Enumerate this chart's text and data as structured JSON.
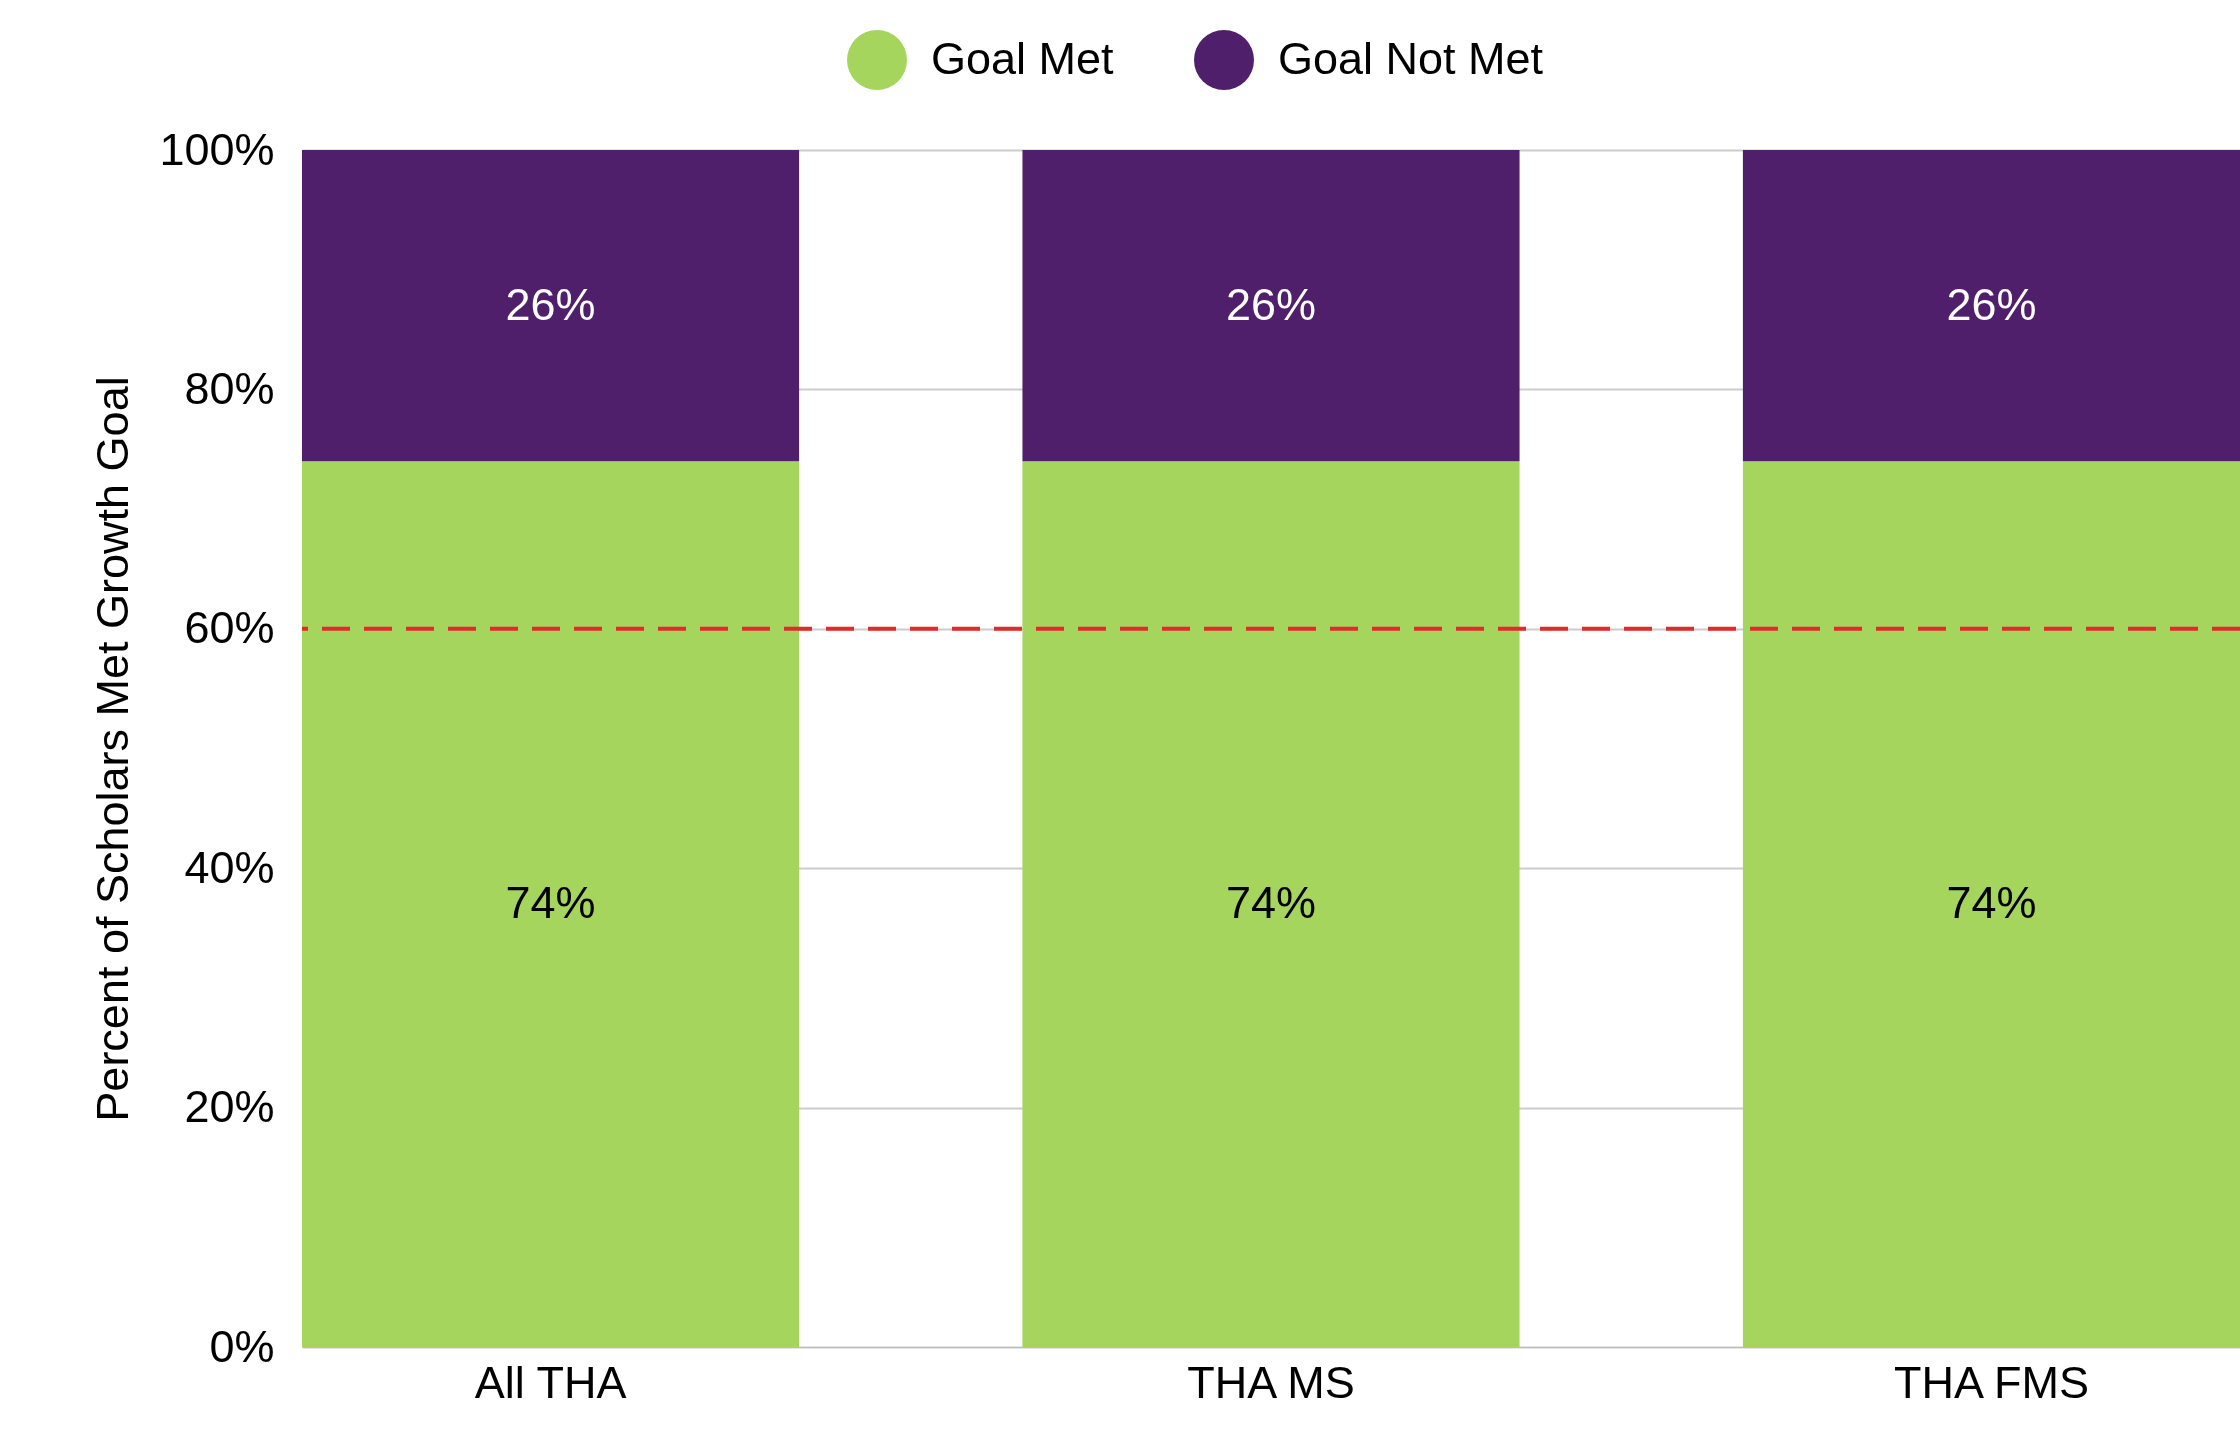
{
  "chart_data": {
    "type": "bar",
    "stacked": true,
    "ylabel": "Percent of Scholars Met Growth Goal",
    "categories": [
      "All THA",
      "THA MS",
      "THA FMS"
    ],
    "series": [
      {
        "name": "Goal Met",
        "color": "#a5d55c",
        "values": [
          74,
          74,
          74
        ],
        "value_labels": [
          "74%",
          "74%",
          "74%"
        ]
      },
      {
        "name": "Goal Not Met",
        "color": "#4f1f6b",
        "values": [
          26,
          26,
          26
        ],
        "value_labels": [
          "26%",
          "26%",
          "26%"
        ]
      }
    ],
    "ylim": [
      0,
      100
    ],
    "yticks": [
      {
        "value": 0,
        "label": "0%"
      },
      {
        "value": 20,
        "label": "20%"
      },
      {
        "value": 40,
        "label": "40%"
      },
      {
        "value": 60,
        "label": "60%"
      },
      {
        "value": 80,
        "label": "80%"
      },
      {
        "value": 100,
        "label": "100%"
      }
    ],
    "ref_lines": [
      {
        "axis": "y",
        "value": 60,
        "color": "#e02b2b",
        "line_style": "dashed"
      }
    ],
    "grid": "y",
    "legend": "top"
  }
}
